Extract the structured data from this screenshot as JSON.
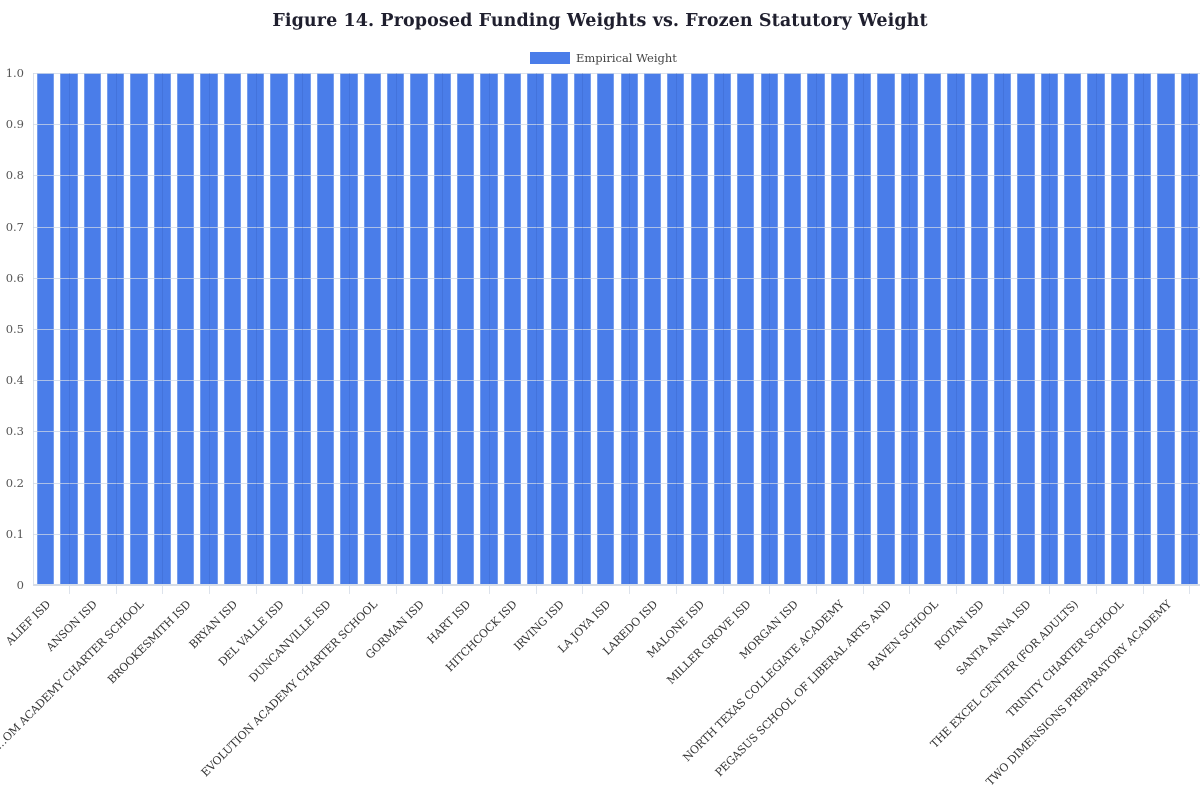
{
  "chart_data": {
    "type": "bar",
    "title": "Figure 14. Proposed Funding Weights vs. Frozen Statutory Weight",
    "legend": [
      {
        "name": "Empirical Weight",
        "color": "#4a7de9"
      }
    ],
    "legend_position": "top-center",
    "xlabel": "",
    "ylabel": "",
    "ylim": [
      0,
      1.0
    ],
    "yticks": [
      "0",
      "0.1",
      "0.2",
      "0.3",
      "0.4",
      "0.5",
      "0.6",
      "0.7",
      "0.8",
      "0.9",
      "1.0"
    ],
    "grid": true,
    "bar_count": 50,
    "visible_tick_labels": [
      "ALIEF ISD",
      "ANSON ISD",
      "…OM ACADEMY CHARTER SCHOOL",
      "BROOKESMITH ISD",
      "BRYAN ISD",
      "DEL VALLE ISD",
      "DUNCANVILLE ISD",
      "EVOLUTION ACADEMY CHARTER SCHOOL",
      "GORMAN ISD",
      "HART ISD",
      "HITCHCOCK ISD",
      "IRVING ISD",
      "LA JOYA ISD",
      "LAREDO ISD",
      "MALONE ISD",
      "MILLER GROVE ISD",
      "MORGAN ISD",
      "NORTH TEXAS COLLEGIATE ACADEMY",
      "PEGASUS SCHOOL OF LIBERAL ARTS AND",
      "RAVEN SCHOOL",
      "ROTAN ISD",
      "SANTA ANNA ISD",
      "THE EXCEL CENTER (FOR ADULTS)",
      "TRINITY CHARTER SCHOOL",
      "TWO DIMENSIONS PREPARATORY ACADEMY"
    ],
    "series": [
      {
        "name": "Empirical Weight",
        "values": [
          1,
          1,
          1,
          1,
          1,
          1,
          1,
          1,
          1,
          1,
          1,
          1,
          1,
          1,
          1,
          1,
          1,
          1,
          1,
          1,
          1,
          1,
          1,
          1,
          1,
          1,
          1,
          1,
          1,
          1,
          1,
          1,
          1,
          1,
          1,
          1,
          1,
          1,
          1,
          1,
          1,
          1,
          1,
          1,
          1,
          1,
          1,
          1,
          1,
          1
        ]
      }
    ]
  }
}
